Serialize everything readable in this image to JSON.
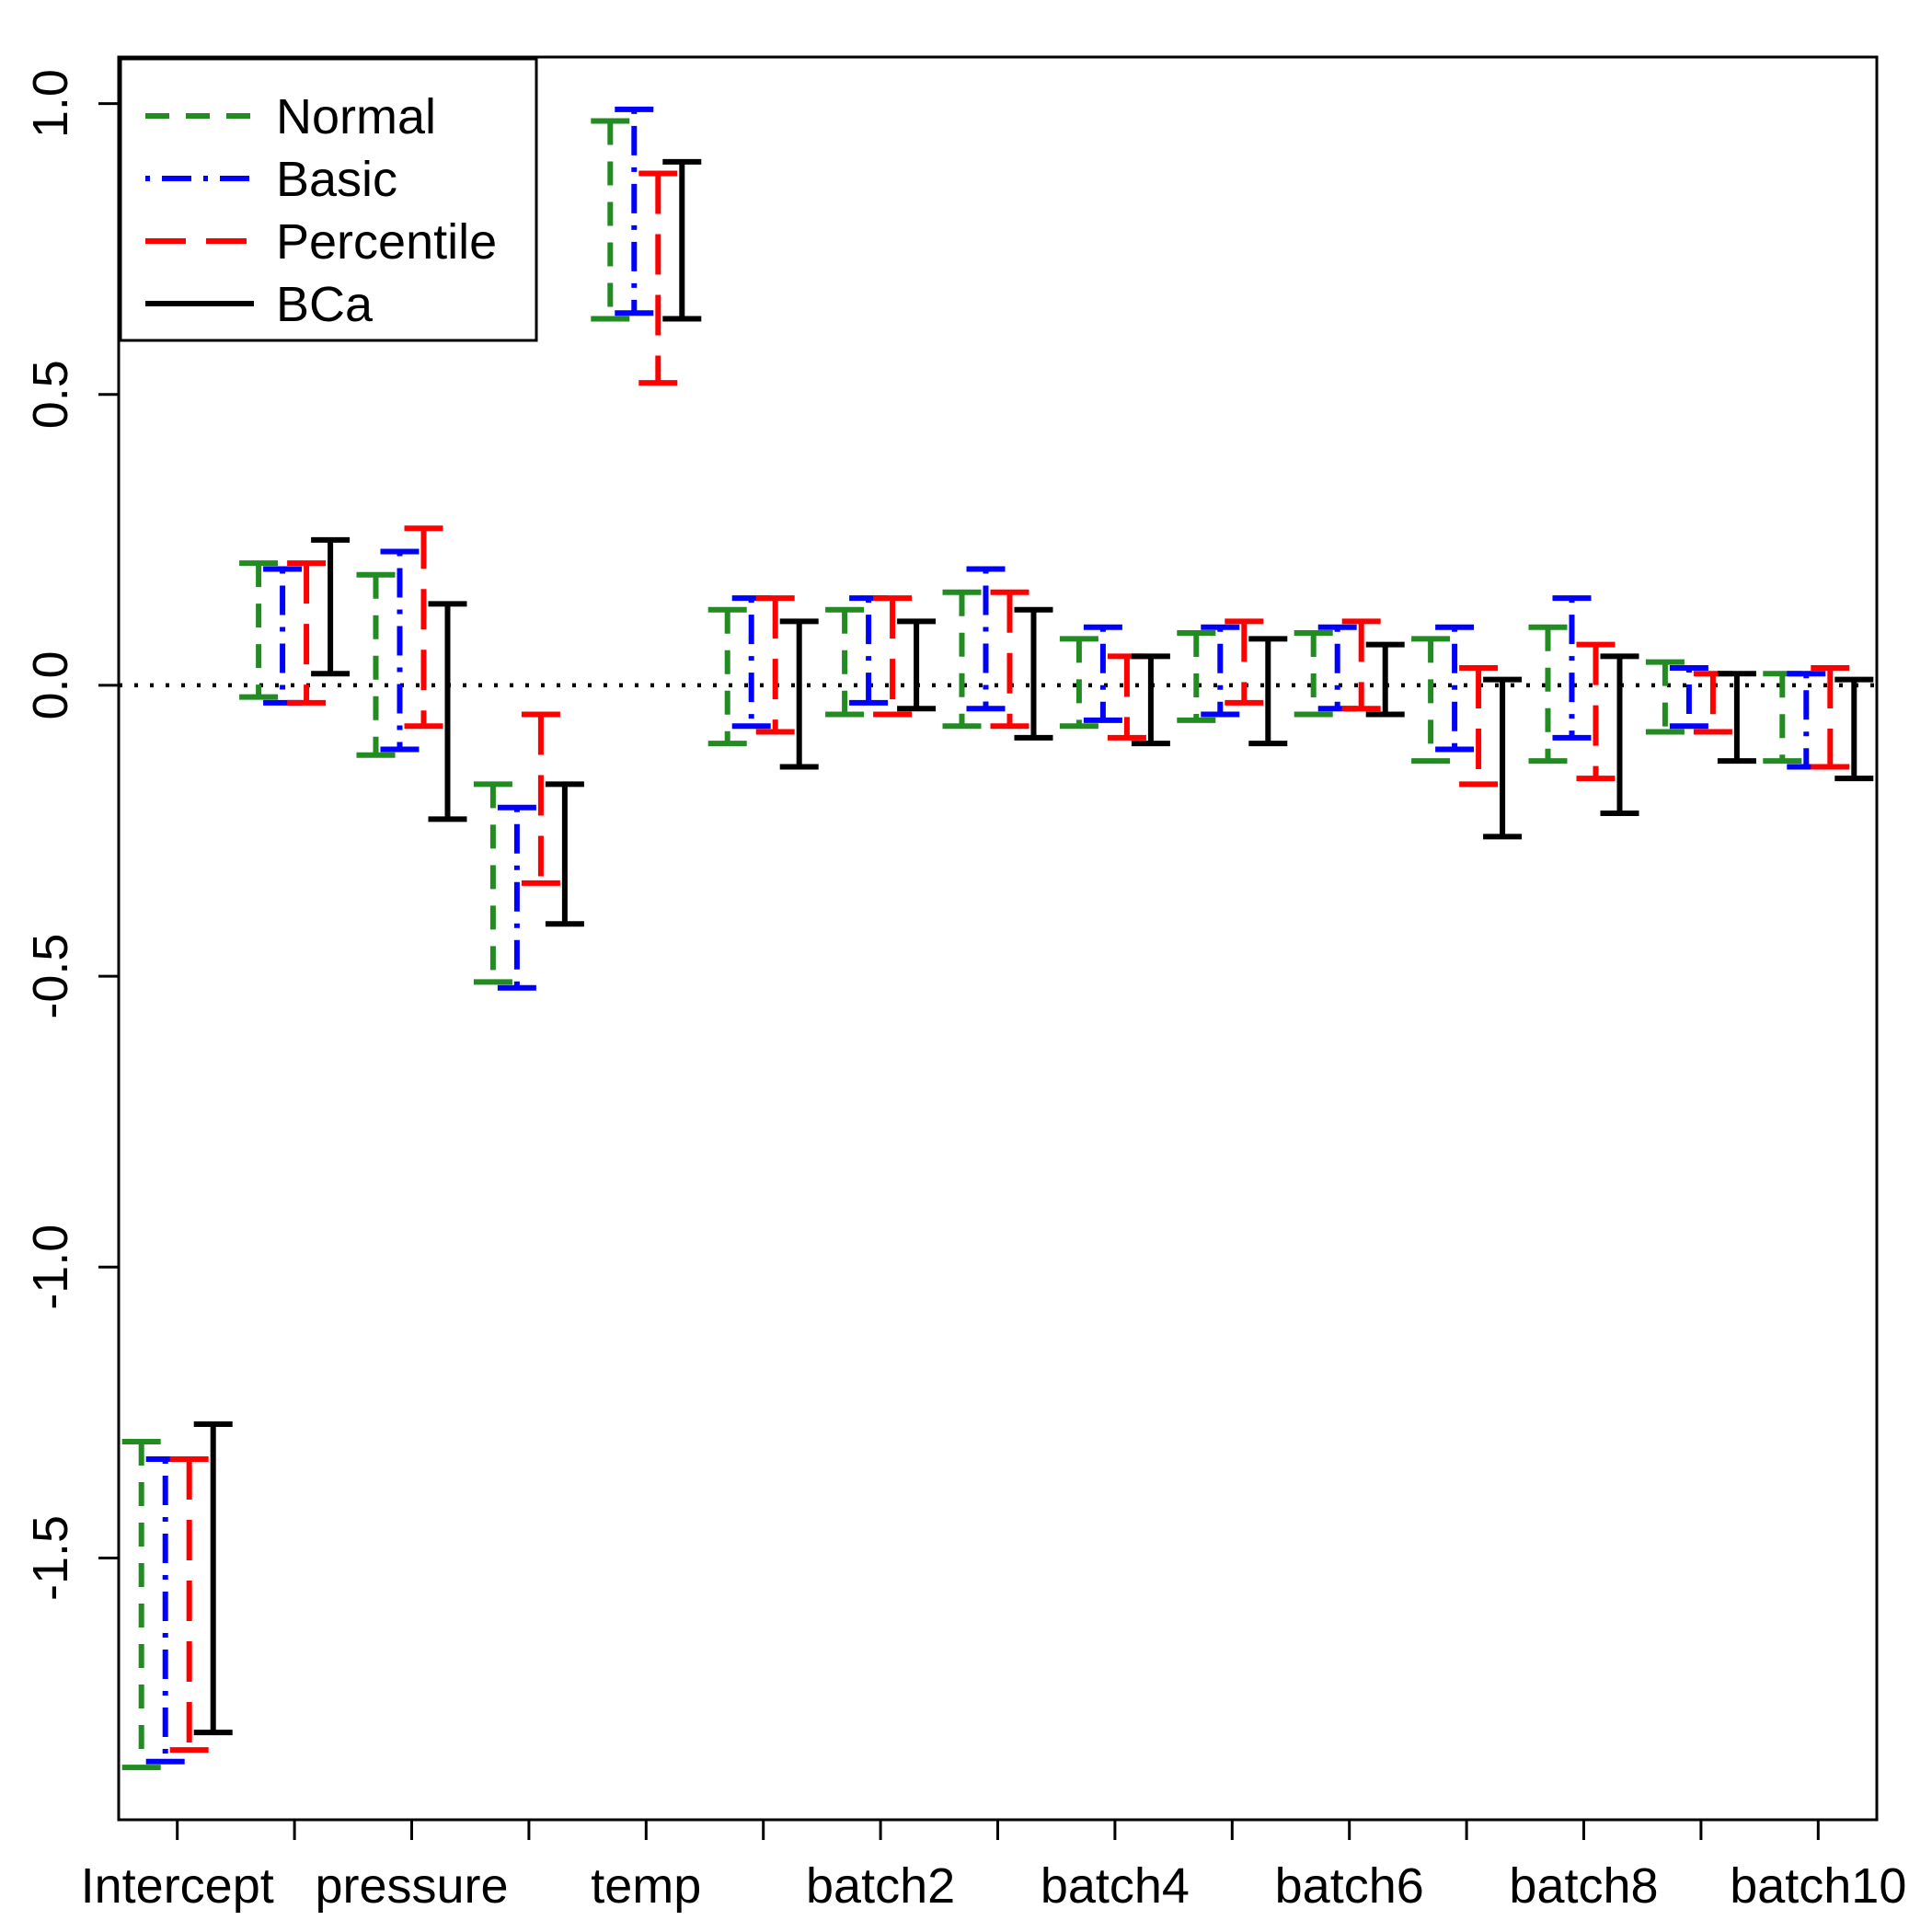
{
  "figure": {
    "background": "#ffffff",
    "axis_color": "#000000"
  },
  "chart_data": {
    "type": "error-bar-comparison",
    "title": "",
    "xlabel": "",
    "ylabel": "",
    "x_categories": [
      "Intercept",
      "",
      "pressure",
      "",
      "temp",
      "",
      "batch2",
      "",
      "batch4",
      "",
      "batch6",
      "",
      "batch8",
      "",
      "batch10"
    ],
    "ylim": [
      -1.95,
      1.08
    ],
    "yticks": [
      1.0,
      0.5,
      0.0,
      -0.5,
      -1.0,
      -1.5
    ],
    "ytick_labels": [
      "1.0",
      "0.5",
      "0.0",
      "-0.5",
      "-1.0",
      "-1.5"
    ],
    "reference_line": {
      "y": 0,
      "style": "dotted",
      "color": "#000000"
    },
    "grid": "off",
    "legend": {
      "position": "top-left"
    },
    "series": [
      {
        "name": "Normal",
        "color": "#228B22",
        "linetype": "dashed",
        "intervals": [
          [
            -1.86,
            -1.3
          ],
          [
            -0.02,
            0.21
          ],
          [
            -0.12,
            0.19
          ],
          [
            -0.51,
            -0.17
          ],
          [
            0.63,
            0.97
          ],
          [
            -0.1,
            0.13
          ],
          [
            -0.05,
            0.13
          ],
          [
            -0.07,
            0.16
          ],
          [
            -0.07,
            0.08
          ],
          [
            -0.06,
            0.09
          ],
          [
            -0.05,
            0.09
          ],
          [
            -0.13,
            0.08
          ],
          [
            -0.13,
            0.1
          ],
          [
            -0.08,
            0.04
          ],
          [
            -0.13,
            0.02
          ]
        ]
      },
      {
        "name": "Basic",
        "color": "#0000FF",
        "linetype": "dotdash",
        "intervals": [
          [
            -1.85,
            -1.33
          ],
          [
            -0.03,
            0.2
          ],
          [
            -0.11,
            0.23
          ],
          [
            -0.52,
            -0.21
          ],
          [
            0.64,
            0.99
          ],
          [
            -0.07,
            0.15
          ],
          [
            -0.03,
            0.15
          ],
          [
            -0.04,
            0.2
          ],
          [
            -0.06,
            0.1
          ],
          [
            -0.05,
            0.1
          ],
          [
            -0.04,
            0.1
          ],
          [
            -0.11,
            0.1
          ],
          [
            -0.09,
            0.15
          ],
          [
            -0.07,
            0.03
          ],
          [
            -0.14,
            0.02
          ]
        ]
      },
      {
        "name": "Percentile",
        "color": "#FF0000",
        "linetype": "longdash",
        "intervals": [
          [
            -1.83,
            -1.33
          ],
          [
            -0.03,
            0.21
          ],
          [
            -0.07,
            0.27
          ],
          [
            -0.34,
            -0.05
          ],
          [
            0.52,
            0.88
          ],
          [
            -0.08,
            0.15
          ],
          [
            -0.05,
            0.15
          ],
          [
            -0.07,
            0.16
          ],
          [
            -0.09,
            0.05
          ],
          [
            -0.03,
            0.11
          ],
          [
            -0.04,
            0.11
          ],
          [
            -0.17,
            0.03
          ],
          [
            -0.16,
            0.07
          ],
          [
            -0.08,
            0.02
          ],
          [
            -0.14,
            0.03
          ]
        ]
      },
      {
        "name": "BCa",
        "color": "#000000",
        "linetype": "solid",
        "intervals": [
          [
            -1.8,
            -1.27
          ],
          [
            0.02,
            0.25
          ],
          [
            -0.23,
            0.14
          ],
          [
            -0.41,
            -0.17
          ],
          [
            0.63,
            0.9
          ],
          [
            -0.14,
            0.11
          ],
          [
            -0.04,
            0.11
          ],
          [
            -0.09,
            0.13
          ],
          [
            -0.1,
            0.05
          ],
          [
            -0.1,
            0.08
          ],
          [
            -0.05,
            0.07
          ],
          [
            -0.26,
            0.01
          ],
          [
            -0.22,
            0.05
          ],
          [
            -0.13,
            0.02
          ],
          [
            -0.16,
            0.01
          ]
        ]
      }
    ]
  }
}
